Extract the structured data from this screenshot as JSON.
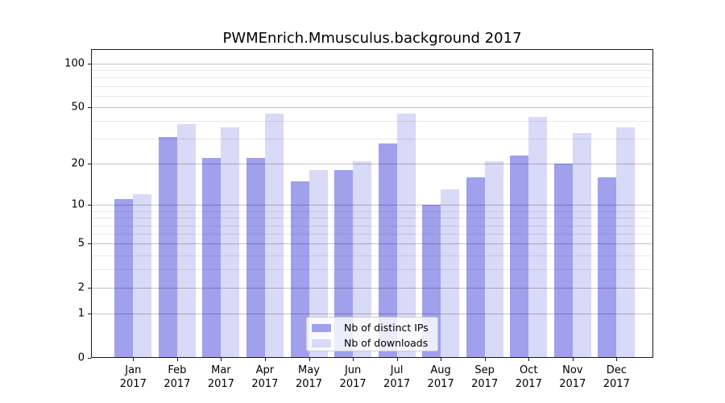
{
  "title": "PWMEnrich.Mmusculus.background 2017",
  "colors": {
    "distinct_ips": "#a0a0ed",
    "downloads": "#d9d9f8",
    "grid_major": "rgba(0,0,0,0.24)",
    "grid_minor": "rgba(0,0,0,0.09)",
    "spine": "#1a1a1a",
    "text": "#000000",
    "legend_border": "#cccccc",
    "background": "#ffffff"
  },
  "axis": {
    "y_ticks": [
      100,
      50,
      20,
      10,
      5,
      2,
      1,
      0
    ],
    "y_major_gridlines": [
      1,
      2,
      5,
      10,
      20,
      50,
      100
    ],
    "y_minor_gridlines": [
      3,
      4,
      6,
      7,
      8,
      9,
      30,
      40,
      60,
      70,
      80,
      90
    ],
    "scale": "log1p",
    "y_top_value": 125.8
  },
  "legend": {
    "items": [
      {
        "label": "Nb of distinct IPs",
        "color_key": "distinct_ips"
      },
      {
        "label": "Nb of downloads",
        "color_key": "downloads"
      }
    ]
  },
  "chart_data": {
    "type": "bar",
    "title": "PWMEnrich.Mmusculus.background 2017",
    "categories": [
      "Jan 2017",
      "Feb 2017",
      "Mar 2017",
      "Apr 2017",
      "May 2017",
      "Jun 2017",
      "Jul 2017",
      "Aug 2017",
      "Sep 2017",
      "Oct 2017",
      "Nov 2017",
      "Dec 2017"
    ],
    "x_tick_labels": [
      [
        "Jan",
        "2017"
      ],
      [
        "Feb",
        "2017"
      ],
      [
        "Mar",
        "2017"
      ],
      [
        "Apr",
        "2017"
      ],
      [
        "May",
        "2017"
      ],
      [
        "Jun",
        "2017"
      ],
      [
        "Jul",
        "2017"
      ],
      [
        "Aug",
        "2017"
      ],
      [
        "Sep",
        "2017"
      ],
      [
        "Oct",
        "2017"
      ],
      [
        "Nov",
        "2017"
      ],
      [
        "Dec",
        "2017"
      ]
    ],
    "series": [
      {
        "name": "Nb of distinct IPs",
        "key": "distinct_ips",
        "values": [
          11,
          31,
          22,
          22,
          15,
          18,
          28,
          10,
          16,
          23,
          20,
          16
        ]
      },
      {
        "name": "Nb of downloads",
        "key": "downloads",
        "values": [
          12,
          38,
          36,
          45,
          18,
          21,
          45,
          13,
          21,
          43,
          33,
          36
        ]
      }
    ],
    "xlabel": "",
    "ylabel": "",
    "yticks": [
      0,
      1,
      2,
      5,
      10,
      20,
      50,
      100
    ],
    "ylim": [
      0,
      125.8
    ],
    "grid": "on",
    "legend_position": "lower center"
  }
}
